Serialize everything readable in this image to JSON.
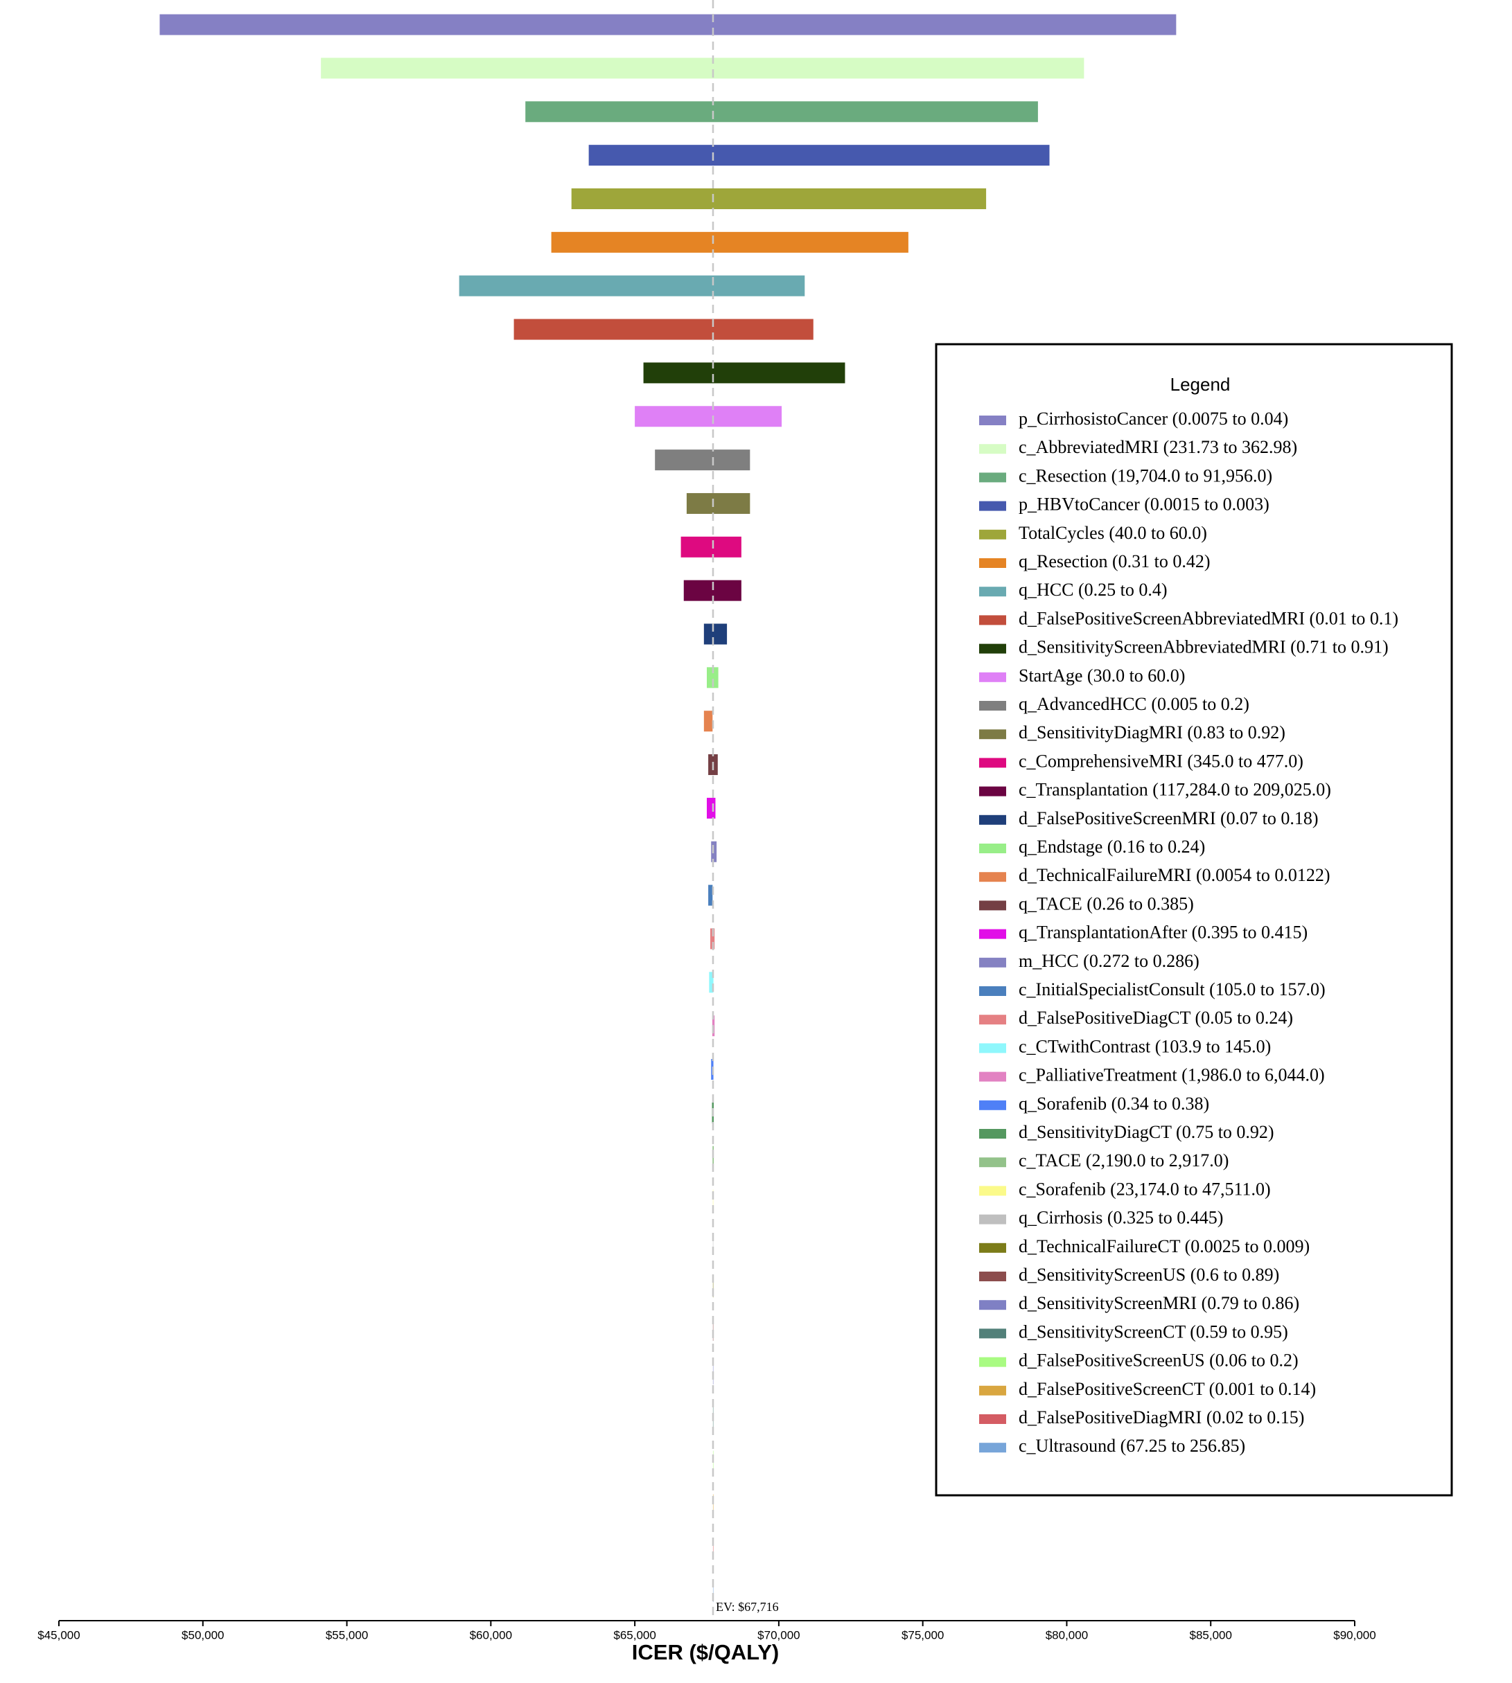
{
  "chart_data": {
    "type": "tornado",
    "xlabel": "ICER ($/QALY)",
    "legend_title": "Legend",
    "ev": 67716,
    "ev_label": "EV: $67,716",
    "xlim": [
      45000,
      90000
    ],
    "xticks": [
      {
        "value": 45000,
        "label": "$45,000"
      },
      {
        "value": 50000,
        "label": "$50,000"
      },
      {
        "value": 55000,
        "label": "$55,000"
      },
      {
        "value": 60000,
        "label": "$60,000"
      },
      {
        "value": 65000,
        "label": "$65,000"
      },
      {
        "value": 70000,
        "label": "$70,000"
      },
      {
        "value": 75000,
        "label": "$75,000"
      },
      {
        "value": 80000,
        "label": "$80,000"
      },
      {
        "value": 85000,
        "label": "$85,000"
      },
      {
        "value": 90000,
        "label": "$90,000"
      }
    ],
    "series": [
      {
        "name": "p_CirrhosistoCancer (0.0075 to 0.04)",
        "color": "#8580c4",
        "values": [
          48500,
          83800
        ]
      },
      {
        "name": "c_AbbreviatedMRI (231.73 to 362.98)",
        "color": "#d6fcc4",
        "values": [
          54100,
          80600
        ]
      },
      {
        "name": "c_Resection (19,704.0 to 91,956.0)",
        "color": "#6aab7e",
        "values": [
          61200,
          79000
        ]
      },
      {
        "name": "p_HBVtoCancer (0.0015 to 0.003)",
        "color": "#4659ae",
        "values": [
          63400,
          79400
        ]
      },
      {
        "name": "TotalCycles (40.0 to 60.0)",
        "color": "#9ea63a",
        "values": [
          62800,
          77200
        ]
      },
      {
        "name": "q_Resection (0.31 to 0.42)",
        "color": "#e58424",
        "values": [
          62100,
          74500
        ]
      },
      {
        "name": "q_HCC (0.25 to 0.4)",
        "color": "#69aab1",
        "values": [
          58900,
          70900
        ]
      },
      {
        "name": "d_FalsePositiveScreenAbbreviatedMRI (0.01 to 0.1)",
        "color": "#c24e3c",
        "values": [
          60800,
          71200
        ]
      },
      {
        "name": "d_SensitivityScreenAbbreviatedMRI (0.71 to 0.91)",
        "color": "#213f09",
        "values": [
          65300,
          72300
        ]
      },
      {
        "name": "StartAge (30.0 to 60.0)",
        "color": "#df80f6",
        "values": [
          65000,
          70100
        ]
      },
      {
        "name": "q_AdvancedHCC (0.005 to 0.2)",
        "color": "#7f7f7f",
        "values": [
          65700,
          69000
        ]
      },
      {
        "name": "d_SensitivityDiagMRI (0.83 to 0.92)",
        "color": "#7d7b45",
        "values": [
          66800,
          69000
        ]
      },
      {
        "name": "c_ComprehensiveMRI (345.0 to 477.0)",
        "color": "#de0a80",
        "values": [
          66600,
          68700
        ]
      },
      {
        "name": "c_Transplantation (117,284.0 to 209,025.0)",
        "color": "#6b0442",
        "values": [
          66700,
          68700
        ]
      },
      {
        "name": "d_FalsePositiveScreenMRI (0.07 to 0.18)",
        "color": "#1f3f7a",
        "values": [
          67400,
          68200
        ]
      },
      {
        "name": "q_Endstage (0.16 to 0.24)",
        "color": "#98ee88",
        "values": [
          67500,
          67900
        ]
      },
      {
        "name": "d_TechnicalFailureMRI (0.0054 to 0.0122)",
        "color": "#e5834f",
        "values": [
          67400,
          67700
        ]
      },
      {
        "name": "q_TACE (0.26 to 0.385)",
        "color": "#743f44",
        "values": [
          67550,
          67880
        ]
      },
      {
        "name": "q_TransplantationAfter (0.395 to 0.415)",
        "color": "#e10ee7",
        "values": [
          67500,
          67800
        ]
      },
      {
        "name": "m_HCC (0.272 to 0.286)",
        "color": "#8582c2",
        "values": [
          67650,
          67840
        ]
      },
      {
        "name": "c_InitialSpecialistConsult (105.0 to 157.0)",
        "color": "#4a7fbd",
        "values": [
          67550,
          67700
        ]
      },
      {
        "name": "d_FalsePositiveDiagCT (0.05 to 0.24)",
        "color": "#e58083",
        "values": [
          67620,
          67770
        ]
      },
      {
        "name": "c_CTwithContrast (103.9 to 145.0)",
        "color": "#8ff7fc",
        "values": [
          67580,
          67730
        ]
      },
      {
        "name": "c_PalliativeTreatment (1,986.0 to 6,044.0)",
        "color": "#e282c2",
        "values": [
          67690,
          67770
        ]
      },
      {
        "name": "q_Sorafenib (0.34 to 0.38)",
        "color": "#4f80f6",
        "values": [
          67650,
          67730
        ]
      },
      {
        "name": "d_SensitivityDiagCT (0.75 to 0.92)",
        "color": "#54985f",
        "values": [
          67680,
          67740
        ]
      },
      {
        "name": "c_TACE (2,190.0 to 2,917.0)",
        "color": "#93c28a",
        "values": [
          67700,
          67740
        ]
      },
      {
        "name": "c_Sorafenib (23,174.0 to 47,511.0)",
        "color": "#fbfa8a",
        "values": [
          67712,
          67720
        ]
      },
      {
        "name": "q_Cirrhosis (0.325 to 0.445)",
        "color": "#bfbfbf",
        "values": [
          67712,
          67720
        ]
      },
      {
        "name": "d_TechnicalFailureCT (0.0025 to 0.009)",
        "color": "#7c7c19",
        "values": [
          67713,
          67719
        ]
      },
      {
        "name": "d_SensitivityScreenUS (0.6 to 0.89)",
        "color": "#8c4d4d",
        "values": [
          67713,
          67719
        ]
      },
      {
        "name": "d_SensitivityScreenMRI (0.79 to 0.86)",
        "color": "#7f80c4",
        "values": [
          67714,
          67718
        ]
      },
      {
        "name": "d_SensitivityScreenCT (0.59 to 0.95)",
        "color": "#528079",
        "values": [
          67714,
          67718
        ]
      },
      {
        "name": "d_FalsePositiveScreenUS (0.06 to 0.2)",
        "color": "#a9fb82",
        "values": [
          67715,
          67717
        ]
      },
      {
        "name": "d_FalsePositiveScreenCT (0.001 to 0.14)",
        "color": "#d9a640",
        "values": [
          67715,
          67717
        ]
      },
      {
        "name": "d_FalsePositiveDiagMRI (0.02 to 0.15)",
        "color": "#d45c63",
        "values": [
          67715,
          67717
        ]
      },
      {
        "name": "c_Ultrasound (67.25 to 256.85)",
        "color": "#77a5d9",
        "values": [
          67715,
          67717
        ]
      }
    ]
  }
}
